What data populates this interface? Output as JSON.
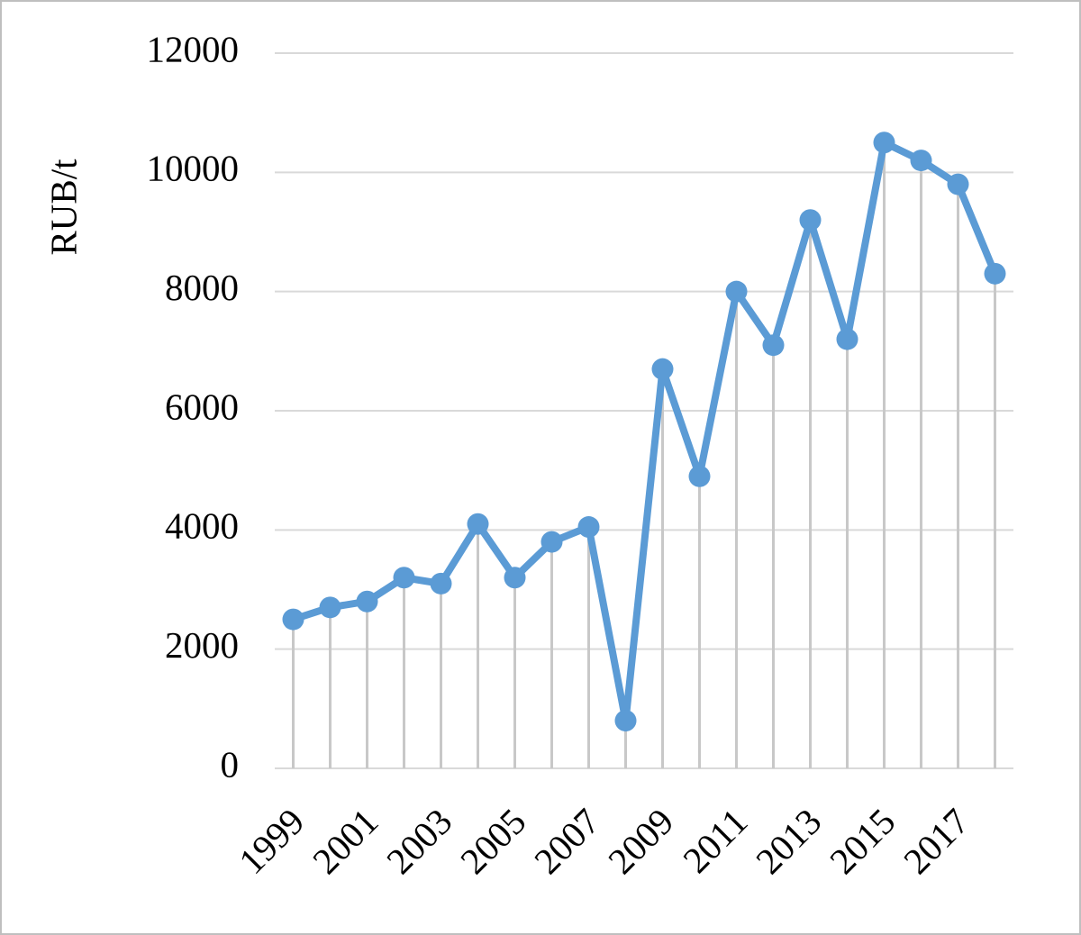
{
  "chart_data": {
    "type": "line",
    "y_label": "RUB/t",
    "categories": [
      "1999",
      null,
      "2001",
      null,
      "2003",
      null,
      "2005",
      null,
      "2007",
      null,
      "2009",
      null,
      "2011",
      null,
      "2013",
      null,
      "2015",
      null,
      "2017",
      null
    ],
    "series": [
      {
        "name": "RUB/t",
        "color": "#5b9bd5",
        "values": [
          2500,
          2700,
          2800,
          3200,
          3100,
          4100,
          3200,
          3800,
          4050,
          800,
          6700,
          4900,
          8000,
          7100,
          9200,
          7200,
          10500,
          10200,
          9800,
          8300
        ]
      }
    ],
    "ylim": [
      0,
      12000
    ],
    "yticks": [
      0,
      2000,
      4000,
      6000,
      8000,
      10000,
      12000
    ],
    "grid": true,
    "drop_lines": true,
    "markers": true
  }
}
